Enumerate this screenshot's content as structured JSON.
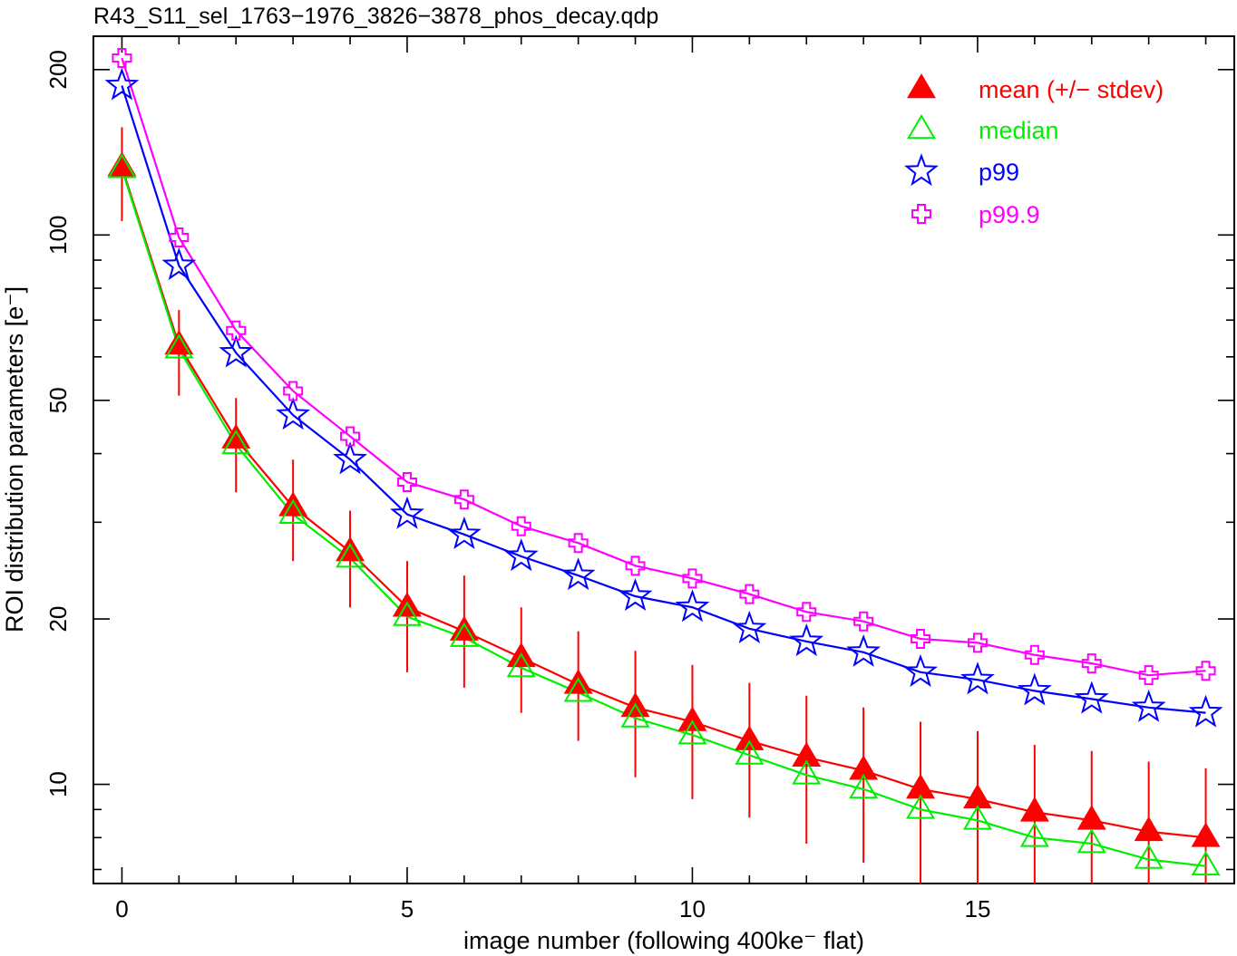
{
  "chart_data": {
    "type": "line",
    "title": "R43_S11_sel_1763−1976_3826−3878_phos_decay.qdp",
    "xlabel": "image number (following 400ke⁻ flat)",
    "ylabel": "ROI distribution parameters [e⁻]",
    "xlim": [
      -0.5,
      19.5
    ],
    "ylim": [
      6.6,
      230
    ],
    "y_scale": "log",
    "x_ticks": [
      0,
      5,
      10,
      15
    ],
    "x_tick_labels": [
      "0",
      "5",
      "10",
      "15"
    ],
    "y_ticks": [
      10,
      20,
      50,
      100,
      200
    ],
    "y_tick_labels": [
      "10",
      "20",
      "50",
      "100",
      "200"
    ],
    "legend_position": "top-right",
    "x": [
      0,
      1,
      2,
      3,
      4,
      5,
      6,
      7,
      8,
      9,
      10,
      11,
      12,
      13,
      14,
      15,
      16,
      17,
      18,
      19
    ],
    "series": [
      {
        "name": "mean (+/− stdev)",
        "marker": "filled-triangle",
        "color": "#ff0000",
        "values": [
          133,
          63,
          42.5,
          32,
          26.5,
          21,
          19,
          17,
          15.2,
          13.8,
          13,
          12,
          11.2,
          10.6,
          9.8,
          9.4,
          8.9,
          8.6,
          8.2,
          8.0
        ],
        "stdev_low": [
          106,
          51,
          34,
          25.5,
          21,
          16,
          15,
          13.5,
          12,
          10.3,
          9.4,
          8.7,
          7.8,
          7.2,
          6.6,
          6.6,
          6.6,
          6.6,
          6.6,
          6.6
        ],
        "stdev_high": [
          157,
          73,
          50.5,
          39,
          31.5,
          25.5,
          24,
          21,
          19,
          17.5,
          16.5,
          15.3,
          14.5,
          13.8,
          13,
          12.5,
          11.8,
          11.5,
          11,
          10.7
        ]
      },
      {
        "name": "median",
        "marker": "open-triangle",
        "color": "#00ee00",
        "values": [
          132,
          62,
          41.5,
          31,
          25.8,
          20.2,
          18.5,
          16.3,
          14.7,
          13.2,
          12.3,
          11.3,
          10.4,
          9.8,
          9.0,
          8.6,
          8.0,
          7.8,
          7.3,
          7.1
        ]
      },
      {
        "name": "p99",
        "marker": "open-star",
        "color": "#0000ff",
        "values": [
          187,
          88,
          61,
          47,
          39,
          31,
          28.5,
          26,
          24,
          22,
          21,
          19.2,
          18.2,
          17.4,
          16,
          15.5,
          14.8,
          14.3,
          13.8,
          13.5
        ]
      },
      {
        "name": "p99.9",
        "marker": "open-cross",
        "color": "#ff00ff",
        "values": [
          210,
          99,
          67,
          52,
          43,
          35.5,
          33,
          29.5,
          27.5,
          25,
          23.7,
          22.2,
          20.6,
          19.8,
          18.4,
          18.1,
          17.2,
          16.6,
          15.8,
          16.1
        ]
      }
    ]
  }
}
